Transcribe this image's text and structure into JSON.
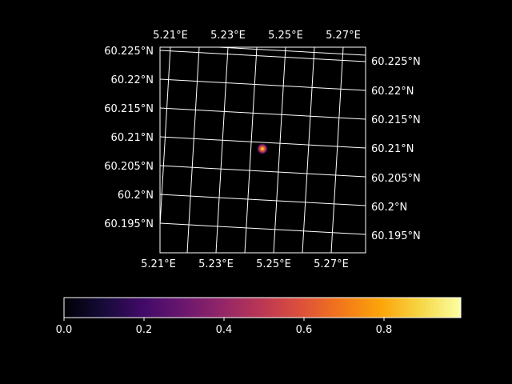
{
  "map": {
    "top_lon_labels": [
      "5.21°E",
      "5.23°E",
      "5.25°E",
      "5.27°E"
    ],
    "bottom_lon_labels": [
      "5.21°E",
      "5.23°E",
      "5.25°E",
      "5.27°E"
    ],
    "left_lat_labels": [
      "60.225°N",
      "60.22°N",
      "60.215°N",
      "60.21°N",
      "60.205°N",
      "60.2°N",
      "60.195°N"
    ],
    "right_lat_labels": [
      "60.225°N",
      "60.22°N",
      "60.215°N",
      "60.21°N",
      "60.205°N",
      "60.2°N",
      "60.195°N"
    ],
    "background_color": "#000000",
    "gridline_color": "#ffffff",
    "hotspot": {
      "lon": 5.246,
      "lat": 60.208,
      "value_peak": 1.0
    }
  },
  "colorbar": {
    "colormap": "inferno",
    "tick_labels": [
      "0.0",
      "0.2",
      "0.4",
      "0.6",
      "0.8"
    ],
    "range": [
      0.0,
      1.0
    ]
  }
}
